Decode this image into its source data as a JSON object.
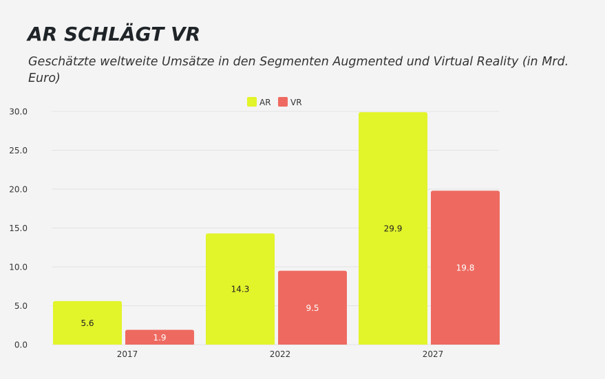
{
  "header": {
    "title": "AR SCHLÄGT VR",
    "subtitle": "Geschätzte weltweite Umsätze in den Segmenten Augmented und Virtual Reality (in Mrd. Euro)"
  },
  "colors": {
    "AR": "#e2f42a",
    "VR": "#ee6a60",
    "grid": "#e2e2e2",
    "axis_text": "#333333"
  },
  "chart_data": {
    "type": "bar",
    "title": "AR SCHLÄGT VR",
    "subtitle": "Geschätzte weltweite Umsätze in den Segmenten Augmented und Virtual Reality (in Mrd. Euro)",
    "categories": [
      "2017",
      "2022",
      "2027"
    ],
    "series": [
      {
        "name": "AR",
        "values": [
          5.6,
          14.3,
          29.9
        ],
        "labels": [
          "5.6",
          "14.3",
          "29.9"
        ]
      },
      {
        "name": "VR",
        "values": [
          1.9,
          9.5,
          19.8
        ],
        "labels": [
          "1.9",
          "9.5",
          "19.8"
        ]
      }
    ],
    "xlabel": "",
    "ylabel": "",
    "ylim": [
      0,
      30
    ],
    "yticks": [
      "0.0",
      "5.0",
      "10.0",
      "15.0",
      "20.0",
      "25.0",
      "30.0"
    ],
    "ytick_values": [
      0,
      5,
      10,
      15,
      20,
      25,
      30
    ],
    "grid": true,
    "legend": "top-center"
  }
}
